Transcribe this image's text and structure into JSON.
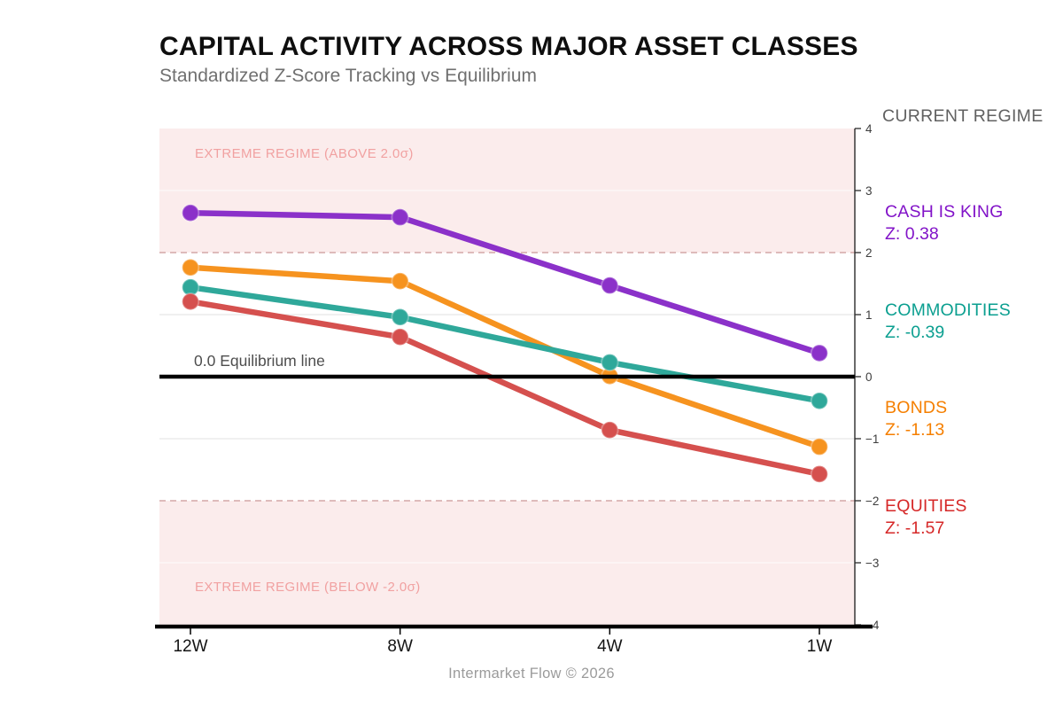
{
  "title": "CAPITAL ACTIVITY ACROSS MAJOR ASSET CLASSES",
  "subtitle": "Standardized Z-Score Tracking vs Equilibrium",
  "footer": "Intermarket Flow © 2026",
  "regime_panel": {
    "header": "CURRENT REGIME",
    "entries": [
      {
        "name": "CASH IS KING",
        "z_label": "Z: 0.38",
        "color": "#8213C8"
      },
      {
        "name": "COMMODITIES",
        "z_label": "Z: -0.39",
        "color": "#0B9F90"
      },
      {
        "name": "BONDS",
        "z_label": "Z: -1.13",
        "color": "#F57F00"
      },
      {
        "name": "EQUITIES",
        "z_label": "Z: -1.57",
        "color": "#D62828"
      }
    ]
  },
  "chart_data": {
    "type": "line",
    "categories": [
      "12W",
      "8W",
      "4W",
      "1W"
    ],
    "series": [
      {
        "name": "CASH IS KING",
        "color": "#8B31C9",
        "values": [
          2.64,
          2.57,
          1.47,
          0.38
        ]
      },
      {
        "name": "BONDS",
        "color": "#F6931F",
        "values": [
          1.76,
          1.54,
          0.01,
          -1.13
        ]
      },
      {
        "name": "COMMODITIES",
        "color": "#2FA89A",
        "values": [
          1.44,
          0.96,
          0.23,
          -0.39
        ]
      },
      {
        "name": "EQUITIES",
        "color": "#D5504E",
        "values": [
          1.21,
          0.64,
          -0.86,
          -1.57
        ]
      }
    ],
    "ylim": [
      -4,
      4
    ],
    "yticks": [
      4,
      3,
      2,
      1,
      0,
      -1,
      -2,
      -3,
      -4
    ],
    "grid": true,
    "legend_position": "right",
    "equilibrium": {
      "value": 0,
      "label": "0.0 Equilibrium line",
      "color": "#000000"
    },
    "bands": [
      {
        "label": "EXTREME REGIME (ABOVE 2.0σ)",
        "from": 2,
        "to": 4,
        "fill": "#FBECEC",
        "text_color": "#F1A1A1",
        "threshold": 2,
        "threshold_color": "#D4A7A7"
      },
      {
        "label": "EXTREME REGIME (BELOW -2.0σ)",
        "from": -4,
        "to": -2,
        "fill": "#FBECEC",
        "text_color": "#F1A1A1",
        "threshold": -2,
        "threshold_color": "#D4A7A7"
      }
    ],
    "axis_colors": {
      "tick_label": "#3d3d3d",
      "x_label": "#141414",
      "spine": "#2b2b2b",
      "gridline": "#ECECEC",
      "gridline_in_band": "rgba(255,255,255,0.6)"
    }
  }
}
